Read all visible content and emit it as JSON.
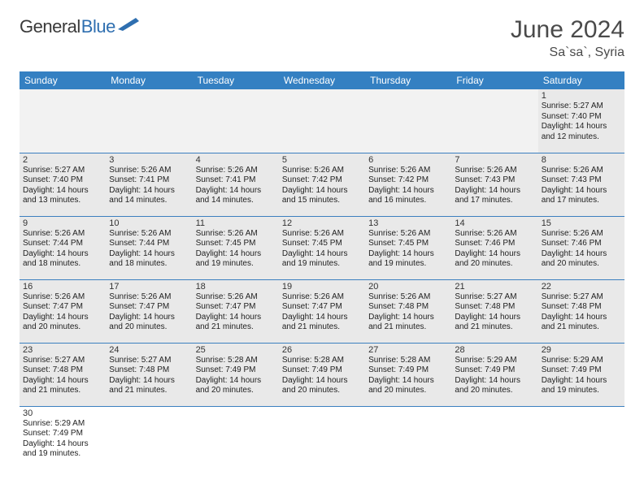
{
  "logo": {
    "text1": "General",
    "text2": "Blue"
  },
  "title": "June 2024",
  "location": "Sa`sa`, Syria",
  "colors": {
    "header_bg": "#3480c2",
    "header_text": "#ffffff",
    "cell_fill": "#e9e9e9",
    "cell_empty": "#f2f2f2",
    "cell_border": "#3b7fbf",
    "title_color": "#4a4a4a",
    "logo_blue": "#2f6fb0"
  },
  "weekdays": [
    "Sunday",
    "Monday",
    "Tuesday",
    "Wednesday",
    "Thursday",
    "Friday",
    "Saturday"
  ],
  "grid": {
    "rows": 6,
    "cols": 7,
    "first_weekday_index": 6,
    "days_in_month": 30
  },
  "days": {
    "1": {
      "sunrise": "5:27 AM",
      "sunset": "7:40 PM",
      "daylight": "14 hours and 12 minutes."
    },
    "2": {
      "sunrise": "5:27 AM",
      "sunset": "7:40 PM",
      "daylight": "14 hours and 13 minutes."
    },
    "3": {
      "sunrise": "5:26 AM",
      "sunset": "7:41 PM",
      "daylight": "14 hours and 14 minutes."
    },
    "4": {
      "sunrise": "5:26 AM",
      "sunset": "7:41 PM",
      "daylight": "14 hours and 14 minutes."
    },
    "5": {
      "sunrise": "5:26 AM",
      "sunset": "7:42 PM",
      "daylight": "14 hours and 15 minutes."
    },
    "6": {
      "sunrise": "5:26 AM",
      "sunset": "7:42 PM",
      "daylight": "14 hours and 16 minutes."
    },
    "7": {
      "sunrise": "5:26 AM",
      "sunset": "7:43 PM",
      "daylight": "14 hours and 17 minutes."
    },
    "8": {
      "sunrise": "5:26 AM",
      "sunset": "7:43 PM",
      "daylight": "14 hours and 17 minutes."
    },
    "9": {
      "sunrise": "5:26 AM",
      "sunset": "7:44 PM",
      "daylight": "14 hours and 18 minutes."
    },
    "10": {
      "sunrise": "5:26 AM",
      "sunset": "7:44 PM",
      "daylight": "14 hours and 18 minutes."
    },
    "11": {
      "sunrise": "5:26 AM",
      "sunset": "7:45 PM",
      "daylight": "14 hours and 19 minutes."
    },
    "12": {
      "sunrise": "5:26 AM",
      "sunset": "7:45 PM",
      "daylight": "14 hours and 19 minutes."
    },
    "13": {
      "sunrise": "5:26 AM",
      "sunset": "7:45 PM",
      "daylight": "14 hours and 19 minutes."
    },
    "14": {
      "sunrise": "5:26 AM",
      "sunset": "7:46 PM",
      "daylight": "14 hours and 20 minutes."
    },
    "15": {
      "sunrise": "5:26 AM",
      "sunset": "7:46 PM",
      "daylight": "14 hours and 20 minutes."
    },
    "16": {
      "sunrise": "5:26 AM",
      "sunset": "7:47 PM",
      "daylight": "14 hours and 20 minutes."
    },
    "17": {
      "sunrise": "5:26 AM",
      "sunset": "7:47 PM",
      "daylight": "14 hours and 20 minutes."
    },
    "18": {
      "sunrise": "5:26 AM",
      "sunset": "7:47 PM",
      "daylight": "14 hours and 21 minutes."
    },
    "19": {
      "sunrise": "5:26 AM",
      "sunset": "7:47 PM",
      "daylight": "14 hours and 21 minutes."
    },
    "20": {
      "sunrise": "5:26 AM",
      "sunset": "7:48 PM",
      "daylight": "14 hours and 21 minutes."
    },
    "21": {
      "sunrise": "5:27 AM",
      "sunset": "7:48 PM",
      "daylight": "14 hours and 21 minutes."
    },
    "22": {
      "sunrise": "5:27 AM",
      "sunset": "7:48 PM",
      "daylight": "14 hours and 21 minutes."
    },
    "23": {
      "sunrise": "5:27 AM",
      "sunset": "7:48 PM",
      "daylight": "14 hours and 21 minutes."
    },
    "24": {
      "sunrise": "5:27 AM",
      "sunset": "7:48 PM",
      "daylight": "14 hours and 21 minutes."
    },
    "25": {
      "sunrise": "5:28 AM",
      "sunset": "7:49 PM",
      "daylight": "14 hours and 20 minutes."
    },
    "26": {
      "sunrise": "5:28 AM",
      "sunset": "7:49 PM",
      "daylight": "14 hours and 20 minutes."
    },
    "27": {
      "sunrise": "5:28 AM",
      "sunset": "7:49 PM",
      "daylight": "14 hours and 20 minutes."
    },
    "28": {
      "sunrise": "5:29 AM",
      "sunset": "7:49 PM",
      "daylight": "14 hours and 20 minutes."
    },
    "29": {
      "sunrise": "5:29 AM",
      "sunset": "7:49 PM",
      "daylight": "14 hours and 19 minutes."
    },
    "30": {
      "sunrise": "5:29 AM",
      "sunset": "7:49 PM",
      "daylight": "14 hours and 19 minutes."
    }
  },
  "labels": {
    "sunrise": "Sunrise:",
    "sunset": "Sunset:",
    "daylight": "Daylight:"
  }
}
